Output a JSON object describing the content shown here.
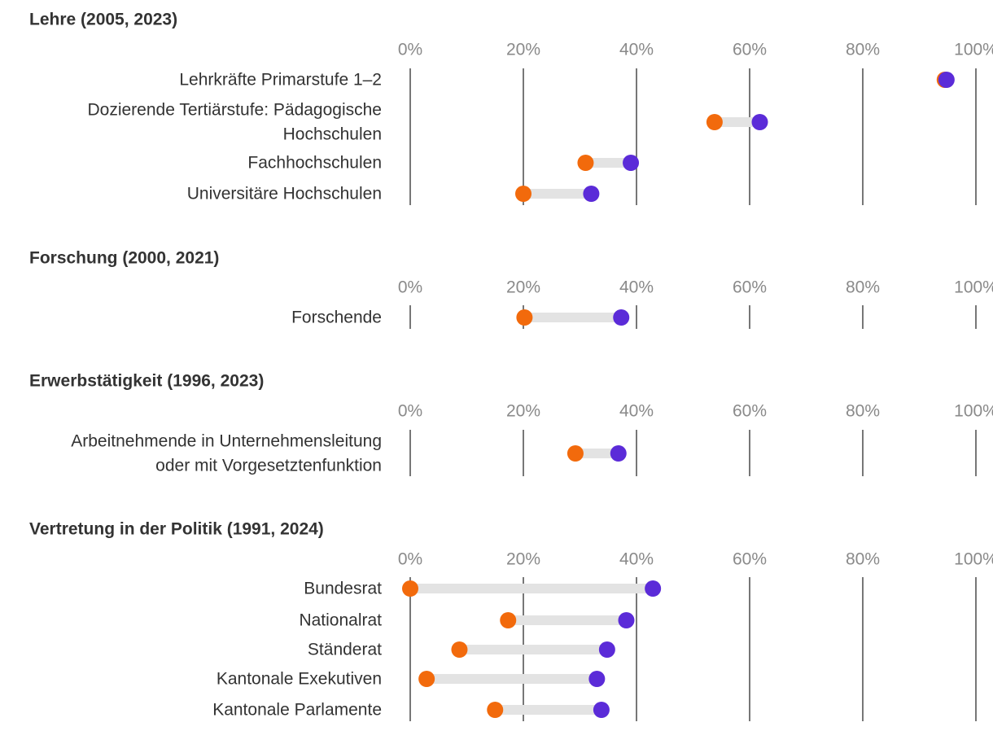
{
  "chart_data": {
    "type": "dumbbell",
    "xlim": [
      0,
      100
    ],
    "ticks": [
      "0%",
      "20%",
      "40%",
      "60%",
      "80%",
      "100%"
    ],
    "tick_values": [
      0,
      20,
      40,
      60,
      80,
      100
    ],
    "colors": {
      "start": "#f26a0c",
      "end": "#5b2bd8",
      "connector": "#e3e3e3",
      "grid": "#777777"
    },
    "sections": [
      {
        "title": "Lehre (2005, 2023)",
        "rows": [
          {
            "label": [
              "Lehrkräfte Primarstufe 1–2"
            ],
            "start": 94.5,
            "end": 94.8
          },
          {
            "label": [
              "Dozierende Tertiärstufe: Pädagogische",
              "Hochschulen"
            ],
            "start": 53.8,
            "end": 61.8
          },
          {
            "label": [
              "Fachhochschulen"
            ],
            "start": 31.0,
            "end": 39.0
          },
          {
            "label": [
              "Universitäre Hochschulen"
            ],
            "start": 20.0,
            "end": 32.0
          }
        ]
      },
      {
        "title": "Forschung (2000, 2021)",
        "rows": [
          {
            "label": [
              "Forschende"
            ],
            "start": 20.2,
            "end": 37.3
          }
        ]
      },
      {
        "title": "Erwerbstätigkeit (1996, 2023)",
        "rows": [
          {
            "label": [
              "Arbeitnehmende in Unternehmensleitung",
              "oder mit Vorgesetztenfunktion"
            ],
            "start": 29.2,
            "end": 36.8
          }
        ]
      },
      {
        "title": "Vertretung in der Politik (1991, 2024)",
        "rows": [
          {
            "label": [
              "Bundesrat"
            ],
            "start": 0.0,
            "end": 42.9
          },
          {
            "label": [
              "Nationalrat"
            ],
            "start": 17.3,
            "end": 38.2
          },
          {
            "label": [
              "Ständerat"
            ],
            "start": 8.7,
            "end": 34.8
          },
          {
            "label": [
              "Kantonale Exekutiven"
            ],
            "start": 2.9,
            "end": 33.0
          },
          {
            "label": [
              "Kantonale Parlamente"
            ],
            "start": 15.0,
            "end": 33.8
          }
        ]
      }
    ]
  }
}
